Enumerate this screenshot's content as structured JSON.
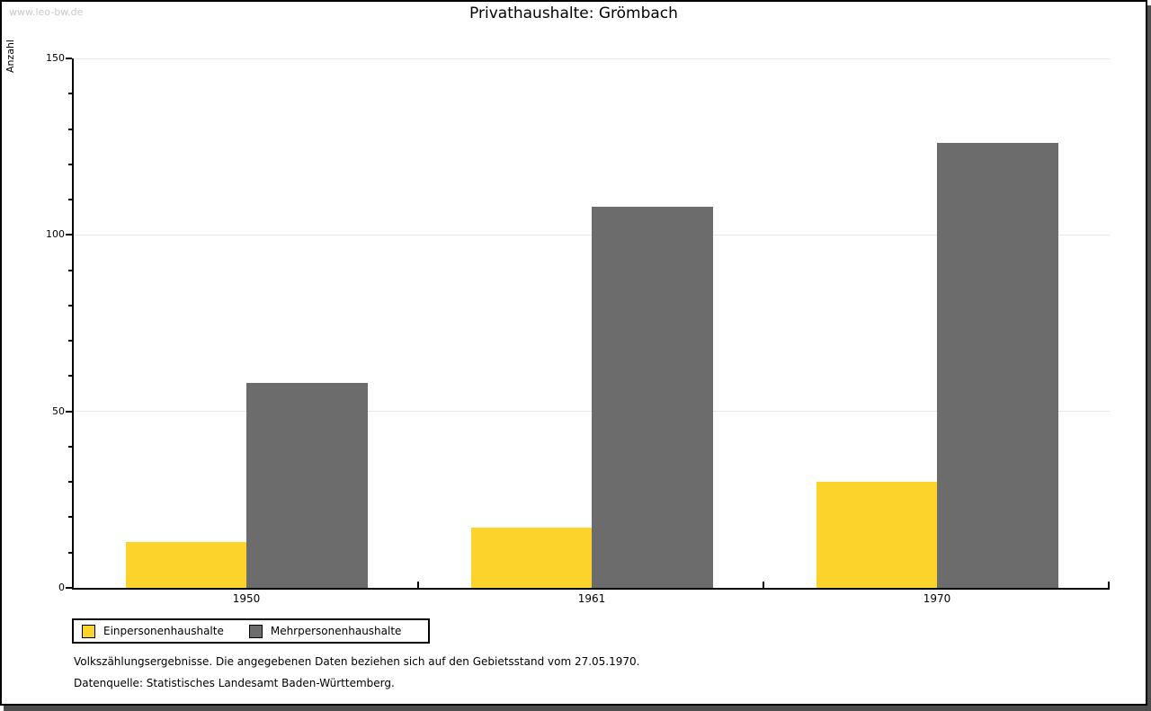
{
  "watermark": "www.leo-bw.de",
  "title": "Privathaushalte: Grömbach",
  "chart_data": {
    "type": "bar",
    "title": "Privathaushalte: Grömbach",
    "xlabel": "",
    "ylabel": "Anzahl",
    "categories": [
      "1950",
      "1961",
      "1970"
    ],
    "series": [
      {
        "name": "Einpersonenhaushalte",
        "color": "#fcd32b",
        "values": [
          13,
          17,
          30
        ]
      },
      {
        "name": "Mehrpersonenhaushalte",
        "color": "#6c6c6c",
        "values": [
          58,
          108,
          126
        ]
      }
    ],
    "ylim": [
      0,
      150
    ],
    "y_major_ticks": [
      0,
      50,
      100,
      150
    ],
    "y_minor_step": 10,
    "grid": "horizontal-major-light",
    "legend_position": "bottom-left",
    "bar_gap_between_series": 0
  },
  "footer": {
    "line1": "Volkszählungsergebnisse. Die angegebenen Daten beziehen sich auf den Gebietsstand vom 27.05.1970.",
    "line2": "Datenquelle: Statistisches Landesamt Baden-Württemberg."
  },
  "colors": {
    "series1": "#fcd32b",
    "series2": "#6c6c6c",
    "gridline": "#e7e7e7",
    "axis": "#000000",
    "watermark": "#c9c9c9",
    "panel_shadow": "#4d4d4d",
    "background": "#ffffff"
  }
}
